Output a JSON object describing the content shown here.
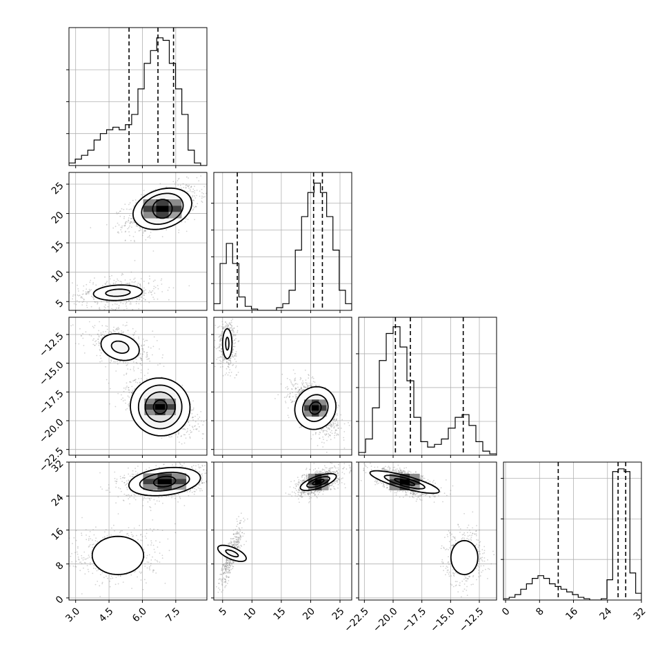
{
  "figure": {
    "type": "corner-plot",
    "n_params": 4,
    "grid_color": "#b0b0b0",
    "ink_color": "#000000",
    "show_grid": true
  },
  "chart_data": {
    "type": "corner",
    "params": [
      {
        "range": [
          2.7,
          8.9
        ],
        "ticks": [
          3.0,
          4.5,
          6.0,
          7.5
        ],
        "tick_labels": [
          "3.0",
          "4.5",
          "6.0",
          "7.5"
        ]
      },
      {
        "range": [
          3.5,
          27.0
        ],
        "ticks": [
          5,
          10,
          15,
          20,
          25
        ],
        "tick_labels": [
          "5",
          "10",
          "15",
          "20",
          "25"
        ]
      },
      {
        "range": [
          -23.0,
          -11.0
        ],
        "ticks": [
          -22.5,
          -20.0,
          -17.5,
          -15.0,
          -12.5
        ],
        "tick_labels": [
          "-22.5",
          "-20.0",
          "-17.5",
          "-15.0",
          "-12.5"
        ]
      },
      {
        "range": [
          -0.5,
          32.0
        ],
        "ticks": [
          0,
          8,
          16,
          24,
          32
        ],
        "tick_labels": [
          "0",
          "8",
          "16",
          "24",
          "32"
        ]
      }
    ],
    "histograms": [
      {
        "bin_range": [
          2.7,
          8.9
        ],
        "counts": [
          0.02,
          0.05,
          0.08,
          0.12,
          0.2,
          0.25,
          0.28,
          0.3,
          0.28,
          0.32,
          0.4,
          0.6,
          0.8,
          0.9,
          1.0,
          0.98,
          0.8,
          0.6,
          0.4,
          0.12,
          0.02,
          0.0
        ],
        "quantiles": [
          5.4,
          6.7,
          7.4
        ],
        "ymax": 1.08,
        "yticks": [
          0.25,
          0.5,
          0.75
        ]
      },
      {
        "bin_range": [
          3.5,
          27.0
        ],
        "counts": [
          0.05,
          0.35,
          0.5,
          0.35,
          0.1,
          0.03,
          0.01,
          0.0,
          0.0,
          0.0,
          0.02,
          0.05,
          0.15,
          0.45,
          0.7,
          0.88,
          0.95,
          0.88,
          0.7,
          0.45,
          0.15,
          0.05
        ],
        "quantiles": [
          7.5,
          20.5,
          22.0
        ],
        "ymax": 1.03,
        "yticks": [
          0.2,
          0.4,
          0.6,
          0.8
        ]
      },
      {
        "bin_range": [
          -23.0,
          -11.0
        ],
        "counts": [
          0.02,
          0.12,
          0.35,
          0.7,
          0.9,
          0.95,
          0.8,
          0.55,
          0.28,
          0.1,
          0.06,
          0.08,
          0.12,
          0.2,
          0.28,
          0.3,
          0.22,
          0.1,
          0.03,
          0.01
        ],
        "quantiles": [
          -19.8,
          -18.5,
          -13.9
        ],
        "ymax": 1.02,
        "yticks": [
          0.25,
          0.5,
          0.75
        ]
      },
      {
        "bin_range": [
          -0.5,
          32.0
        ],
        "counts": [
          0.01,
          0.02,
          0.04,
          0.08,
          0.12,
          0.16,
          0.18,
          0.16,
          0.12,
          0.1,
          0.08,
          0.06,
          0.04,
          0.02,
          0.01,
          0.0,
          0.0,
          0.01,
          0.15,
          0.95,
          0.97,
          0.95,
          0.2,
          0.05
        ],
        "quantiles": [
          12.4,
          26.5,
          28.3
        ],
        "ymax": 1.02,
        "yticks": [
          0.3,
          0.6,
          0.9
        ]
      }
    ],
    "joint": [
      {
        "x": 0,
        "y": 1,
        "clusters": [
          {
            "mx": 6.9,
            "my": 20.8,
            "sx": 0.8,
            "sy": 2.0,
            "rho": 0.5,
            "n": 1100,
            "heat": [
              0.8,
              0.6
            ],
            "contours": [
              [
                0.55,
                1.6
              ],
              [
                1.2,
                2.5
              ],
              [
                1.7,
                3.3
              ]
            ]
          },
          {
            "mx": 4.9,
            "my": 6.5,
            "sx": 1.0,
            "sy": 1.3,
            "rho": 0.15,
            "n": 420,
            "heat": [],
            "contours": [
              [
                0.55,
                0.6
              ],
              [
                1.1,
                1.3
              ]
            ]
          }
        ]
      },
      {
        "x": 0,
        "y": 2,
        "clusters": [
          {
            "mx": 6.8,
            "my": -18.8,
            "sx": 0.75,
            "sy": 1.1,
            "rho": -0.55,
            "n": 1100,
            "heat": [
              0.7,
              0.45
            ],
            "contours": [
              [
                0.4,
                0.6
              ],
              [
                0.9,
                1.3
              ],
              [
                1.3,
                1.9
              ],
              [
                1.8,
                2.5
              ]
            ]
          },
          {
            "mx": 5.0,
            "my": -13.6,
            "sx": 0.8,
            "sy": 0.9,
            "rho": -0.5,
            "n": 420,
            "heat": [],
            "contours": [
              [
                0.5,
                0.5
              ],
              [
                1.1,
                1.1
              ]
            ]
          }
        ]
      },
      {
        "x": 1,
        "y": 2,
        "clusters": [
          {
            "mx": 20.8,
            "my": -18.9,
            "sx": 1.9,
            "sy": 1.1,
            "rho": -0.55,
            "n": 1100,
            "heat": [
              0.75,
              0.5
            ],
            "contours": [
              [
                0.5,
                0.55
              ],
              [
                1.1,
                1.2
              ],
              [
                1.8,
                1.9
              ]
            ]
          },
          {
            "mx": 5.8,
            "my": -13.3,
            "sx": 0.8,
            "sy": 1.0,
            "rho": 0.0,
            "n": 420,
            "heat": [],
            "contours": [
              [
                0.35,
                0.55
              ],
              [
                1.0,
                1.3
              ]
            ]
          }
        ]
      },
      {
        "x": 0,
        "y": 3,
        "clusters": [
          {
            "mx": 7.0,
            "my": 27.4,
            "sx": 0.9,
            "sy": 1.9,
            "rho": 0.3,
            "n": 1100,
            "heat": [
              0.8,
              0.55
            ],
            "contours": [
              [
                0.55,
                1.2
              ],
              [
                1.25,
                2.1
              ],
              [
                1.8,
                3.2
              ]
            ]
          },
          {
            "mx": 4.9,
            "my": 10.0,
            "sx": 1.1,
            "sy": 3.5,
            "rho": 0.0,
            "n": 420,
            "heat": [],
            "contours": [
              [
                1.05,
                4.5
              ]
            ]
          }
        ]
      },
      {
        "x": 1,
        "y": 3,
        "clusters": [
          {
            "mx": 21.3,
            "my": 27.3,
            "sx": 1.7,
            "sy": 1.5,
            "rho": 0.55,
            "n": 1100,
            "heat": [
              0.75,
              0.55
            ],
            "contours": [
              [
                0.6,
                0.45
              ],
              [
                1.2,
                0.9
              ],
              [
                1.9,
                1.4
              ]
            ]
          },
          {
            "mx": 6.6,
            "my": 10.5,
            "sx": 1.0,
            "sy": 3.8,
            "rho": 0.85,
            "n": 420,
            "heat": [],
            "contours": [
              [
                0.4,
                1.6
              ],
              [
                1.0,
                3.6
              ]
            ]
          }
        ]
      },
      {
        "x": 2,
        "y": 3,
        "clusters": [
          {
            "mx": -19.0,
            "my": 27.3,
            "sx": 1.3,
            "sy": 1.6,
            "rho": -0.6,
            "n": 1100,
            "heat": [
              0.75,
              0.5
            ],
            "contours": [
              [
                0.7,
                0.45
              ],
              [
                1.4,
                0.95
              ],
              [
                2.4,
                1.5
              ]
            ]
          },
          {
            "mx": -13.8,
            "my": 9.5,
            "sx": 0.9,
            "sy": 3.3,
            "rho": 0.0,
            "n": 420,
            "heat": [],
            "contours": [
              [
                1.3,
                4.0
              ]
            ]
          }
        ]
      }
    ]
  }
}
